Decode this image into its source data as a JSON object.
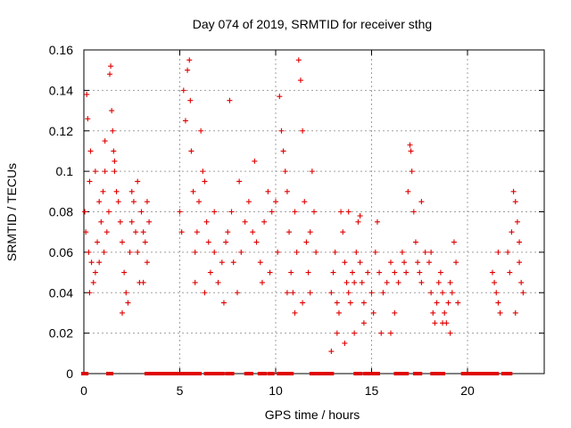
{
  "chart_data": {
    "type": "scatter",
    "title": "Day 074 of 2019, SRMTID for receiver sthg",
    "xlabel": "GPS time / hours",
    "ylabel": "SRMTID / TECUs",
    "xlim": [
      0,
      24
    ],
    "ylim": [
      0,
      0.16
    ],
    "x_ticks": [
      0,
      5,
      10,
      15,
      20
    ],
    "x_tick_labels": [
      "0",
      "5",
      "10",
      "15",
      "20"
    ],
    "y_ticks": [
      0,
      0.02,
      0.04,
      0.06,
      0.08,
      0.1,
      0.12,
      0.14,
      0.16
    ],
    "y_tick_labels": [
      "0",
      "0.02",
      "0.04",
      "0.06",
      "0.08",
      "0.1",
      "0.12",
      "0.14",
      "0.16"
    ],
    "grid": true,
    "marker": "plus",
    "series_color": "#e00000",
    "series": [
      {
        "name": "SRMTID",
        "points": [
          [
            0.05,
            0.08
          ],
          [
            0.1,
            0.07
          ],
          [
            0.15,
            0.138
          ],
          [
            0.2,
            0.126
          ],
          [
            0.25,
            0.06
          ],
          [
            0.3,
            0.095
          ],
          [
            0.35,
            0.11
          ],
          [
            0.4,
            0.055
          ],
          [
            0.5,
            0.045
          ],
          [
            0.6,
            0.05
          ],
          [
            0.7,
            0.065
          ],
          [
            0.8,
            0.085
          ],
          [
            0.9,
            0.075
          ],
          [
            1.0,
            0.09
          ],
          [
            1.05,
            0.06
          ],
          [
            1.1,
            0.1
          ],
          [
            1.2,
            0.07
          ],
          [
            1.3,
            0.08
          ],
          [
            1.35,
            0.148
          ],
          [
            1.4,
            0.152
          ],
          [
            1.45,
            0.13
          ],
          [
            1.5,
            0.12
          ],
          [
            1.55,
            0.11
          ],
          [
            1.6,
            0.1
          ],
          [
            1.7,
            0.09
          ],
          [
            1.8,
            0.085
          ],
          [
            1.9,
            0.075
          ],
          [
            2.0,
            0.065
          ],
          [
            2.1,
            0.05
          ],
          [
            2.2,
            0.04
          ],
          [
            2.3,
            0.035
          ],
          [
            2.4,
            0.06
          ],
          [
            2.5,
            0.075
          ],
          [
            2.6,
            0.085
          ],
          [
            2.7,
            0.07
          ],
          [
            2.8,
            0.06
          ],
          [
            2.9,
            0.045
          ],
          [
            3.0,
            0.08
          ],
          [
            3.1,
            0.07
          ],
          [
            3.2,
            0.065
          ],
          [
            3.3,
            0.055
          ],
          [
            3.4,
            0.075
          ],
          [
            0.3,
            0.04
          ],
          [
            0.6,
            0.1
          ],
          [
            0.8,
            0.055
          ],
          [
            1.1,
            0.115
          ],
          [
            1.6,
            0.105
          ],
          [
            2.0,
            0.03
          ],
          [
            2.5,
            0.09
          ],
          [
            2.8,
            0.095
          ],
          [
            3.1,
            0.045
          ],
          [
            3.3,
            0.085
          ],
          [
            5.0,
            0.08
          ],
          [
            5.1,
            0.07
          ],
          [
            5.2,
            0.14
          ],
          [
            5.3,
            0.125
          ],
          [
            5.4,
            0.15
          ],
          [
            5.5,
            0.155
          ],
          [
            5.55,
            0.135
          ],
          [
            5.6,
            0.11
          ],
          [
            5.7,
            0.09
          ],
          [
            5.8,
            0.06
          ],
          [
            5.9,
            0.07
          ],
          [
            6.0,
            0.085
          ],
          [
            6.1,
            0.12
          ],
          [
            6.2,
            0.1
          ],
          [
            6.3,
            0.095
          ],
          [
            6.4,
            0.075
          ],
          [
            6.5,
            0.065
          ],
          [
            6.6,
            0.05
          ],
          [
            6.8,
            0.06
          ],
          [
            7.0,
            0.045
          ],
          [
            7.2,
            0.055
          ],
          [
            7.4,
            0.065
          ],
          [
            7.5,
            0.07
          ],
          [
            7.6,
            0.135
          ],
          [
            7.7,
            0.08
          ],
          [
            7.8,
            0.055
          ],
          [
            8.0,
            0.04
          ],
          [
            8.2,
            0.06
          ],
          [
            8.4,
            0.075
          ],
          [
            8.6,
            0.085
          ],
          [
            8.8,
            0.07
          ],
          [
            9.0,
            0.065
          ],
          [
            9.2,
            0.055
          ],
          [
            9.4,
            0.075
          ],
          [
            9.6,
            0.09
          ],
          [
            9.8,
            0.08
          ],
          [
            10.0,
            0.085
          ],
          [
            10.1,
            0.06
          ],
          [
            5.8,
            0.045
          ],
          [
            6.3,
            0.04
          ],
          [
            6.8,
            0.08
          ],
          [
            7.3,
            0.035
          ],
          [
            8.1,
            0.095
          ],
          [
            8.9,
            0.105
          ],
          [
            9.3,
            0.045
          ],
          [
            9.7,
            0.05
          ],
          [
            10.2,
            0.137
          ],
          [
            10.3,
            0.12
          ],
          [
            10.4,
            0.11
          ],
          [
            10.5,
            0.1
          ],
          [
            10.6,
            0.09
          ],
          [
            10.7,
            0.07
          ],
          [
            10.8,
            0.05
          ],
          [
            10.9,
            0.04
          ],
          [
            11.0,
            0.03
          ],
          [
            11.1,
            0.06
          ],
          [
            11.2,
            0.155
          ],
          [
            11.3,
            0.145
          ],
          [
            11.4,
            0.12
          ],
          [
            11.5,
            0.085
          ],
          [
            11.6,
            0.065
          ],
          [
            11.7,
            0.05
          ],
          [
            11.8,
            0.07
          ],
          [
            11.9,
            0.1
          ],
          [
            12.0,
            0.08
          ],
          [
            12.1,
            0.06
          ],
          [
            10.6,
            0.04
          ],
          [
            11.0,
            0.08
          ],
          [
            11.4,
            0.035
          ],
          [
            11.8,
            0.04
          ],
          [
            12.9,
            0.04
          ],
          [
            13.0,
            0.05
          ],
          [
            13.1,
            0.06
          ],
          [
            13.2,
            0.035
          ],
          [
            13.3,
            0.03
          ],
          [
            13.4,
            0.08
          ],
          [
            13.5,
            0.07
          ],
          [
            13.6,
            0.055
          ],
          [
            13.7,
            0.045
          ],
          [
            13.8,
            0.04
          ],
          [
            13.9,
            0.035
          ],
          [
            14.0,
            0.05
          ],
          [
            14.1,
            0.045
          ],
          [
            14.2,
            0.06
          ],
          [
            14.3,
            0.075
          ],
          [
            14.4,
            0.055
          ],
          [
            14.5,
            0.045
          ],
          [
            14.6,
            0.035
          ],
          [
            14.8,
            0.05
          ],
          [
            15.0,
            0.04
          ],
          [
            15.2,
            0.06
          ],
          [
            15.4,
            0.05
          ],
          [
            15.6,
            0.04
          ],
          [
            15.8,
            0.045
          ],
          [
            16.0,
            0.055
          ],
          [
            16.2,
            0.05
          ],
          [
            16.4,
            0.045
          ],
          [
            12.9,
            0.011
          ],
          [
            13.2,
            0.02
          ],
          [
            13.6,
            0.015
          ],
          [
            14.1,
            0.02
          ],
          [
            14.6,
            0.025
          ],
          [
            15.1,
            0.03
          ],
          [
            15.5,
            0.02
          ],
          [
            16.0,
            0.02
          ],
          [
            16.2,
            0.03
          ],
          [
            13.8,
            0.08
          ],
          [
            14.4,
            0.078
          ],
          [
            15.3,
            0.075
          ],
          [
            16.6,
            0.06
          ],
          [
            16.7,
            0.055
          ],
          [
            16.8,
            0.05
          ],
          [
            16.9,
            0.09
          ],
          [
            17.0,
            0.113
          ],
          [
            17.05,
            0.11
          ],
          [
            17.1,
            0.1
          ],
          [
            17.2,
            0.08
          ],
          [
            17.3,
            0.065
          ],
          [
            17.4,
            0.055
          ],
          [
            17.5,
            0.05
          ],
          [
            17.6,
            0.045
          ],
          [
            17.8,
            0.06
          ],
          [
            18.0,
            0.055
          ],
          [
            18.1,
            0.04
          ],
          [
            18.2,
            0.03
          ],
          [
            18.3,
            0.025
          ],
          [
            18.4,
            0.035
          ],
          [
            18.5,
            0.045
          ],
          [
            18.6,
            0.05
          ],
          [
            18.7,
            0.04
          ],
          [
            18.8,
            0.03
          ],
          [
            18.9,
            0.025
          ],
          [
            19.0,
            0.035
          ],
          [
            19.1,
            0.045
          ],
          [
            19.2,
            0.04
          ],
          [
            19.3,
            0.065
          ],
          [
            19.4,
            0.055
          ],
          [
            19.5,
            0.035
          ],
          [
            17.6,
            0.085
          ],
          [
            18.1,
            0.06
          ],
          [
            18.7,
            0.025
          ],
          [
            19.1,
            0.02
          ],
          [
            21.3,
            0.05
          ],
          [
            21.4,
            0.045
          ],
          [
            21.5,
            0.04
          ],
          [
            21.6,
            0.035
          ],
          [
            21.7,
            0.03
          ],
          [
            21.6,
            0.06
          ],
          [
            22.1,
            0.06
          ],
          [
            22.2,
            0.05
          ],
          [
            22.3,
            0.07
          ],
          [
            22.4,
            0.09
          ],
          [
            22.5,
            0.085
          ],
          [
            22.6,
            0.075
          ],
          [
            22.7,
            0.055
          ],
          [
            22.8,
            0.045
          ],
          [
            22.9,
            0.04
          ],
          [
            22.5,
            0.03
          ],
          [
            22.7,
            0.065
          ]
        ]
      }
    ],
    "zero_segments": [
      [
        0.0,
        0.1
      ],
      [
        1.3,
        1.4
      ],
      [
        3.3,
        5.0
      ],
      [
        5.2,
        5.4
      ],
      [
        5.6,
        6.0
      ],
      [
        6.4,
        6.6
      ],
      [
        6.8,
        6.9
      ],
      [
        7.0,
        7.2
      ],
      [
        7.5,
        7.7
      ],
      [
        8.5,
        8.7
      ],
      [
        9.2,
        9.4
      ],
      [
        9.7,
        9.8
      ],
      [
        10.2,
        10.3
      ],
      [
        10.5,
        10.8
      ],
      [
        11.9,
        12.9
      ],
      [
        14.2,
        14.4
      ],
      [
        14.7,
        15.0
      ],
      [
        15.2,
        15.3
      ],
      [
        16.3,
        16.5
      ],
      [
        16.6,
        16.8
      ],
      [
        17.3,
        17.5
      ],
      [
        18.2,
        18.4
      ],
      [
        18.5,
        18.7
      ],
      [
        19.8,
        21.5
      ],
      [
        21.9,
        22.2
      ]
    ]
  }
}
